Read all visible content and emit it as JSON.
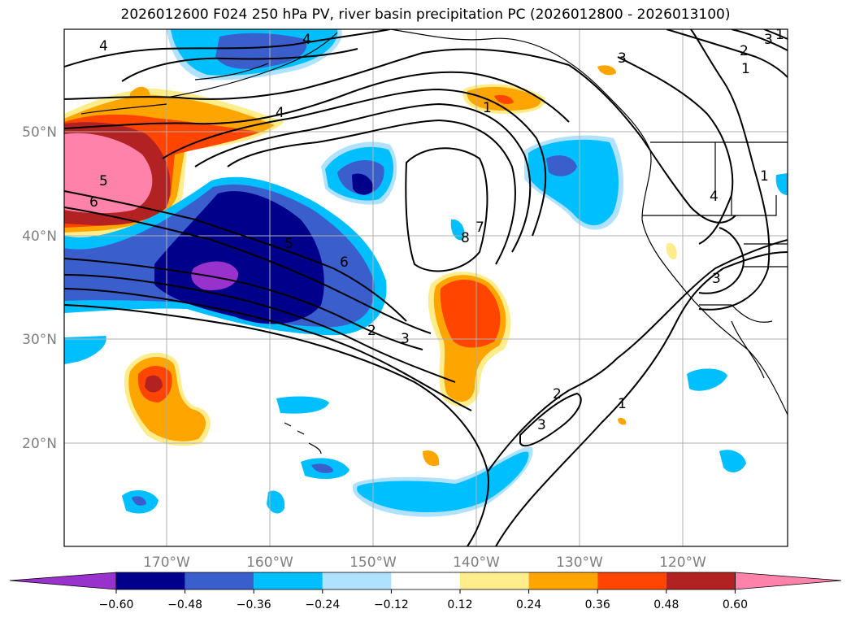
{
  "title": "2026012600 F024 250 hPa PV, river basin precipitation PC (2026012800 - 2026013100)",
  "lat_labels": [
    "50°N",
    "40°N",
    "30°N",
    "20°N"
  ],
  "lon_labels": [
    "170°W",
    "160°W",
    "150°W",
    "140°W",
    "130°W",
    "120°W"
  ],
  "pv_contour_labels": [
    "4",
    "4",
    "4",
    "5",
    "6",
    "5",
    "6",
    "2",
    "3",
    "8",
    "7",
    "1",
    "3",
    "2",
    "1",
    "3",
    "1",
    "4",
    "3",
    "1",
    "2",
    "3",
    "1"
  ],
  "colorbar": {
    "ticks": [
      "−0.60",
      "−0.48",
      "−0.36",
      "−0.24",
      "−0.12",
      "0.12",
      "0.24",
      "0.36",
      "0.48",
      "0.60"
    ],
    "colors": [
      "#9932cc",
      "#00008b",
      "#3a5fcd",
      "#00bfff",
      "#b0e2ff",
      "#ffffff",
      "#ffec8b",
      "#ffa500",
      "#ff4500",
      "#b22222",
      "#ff82ab"
    ]
  }
}
